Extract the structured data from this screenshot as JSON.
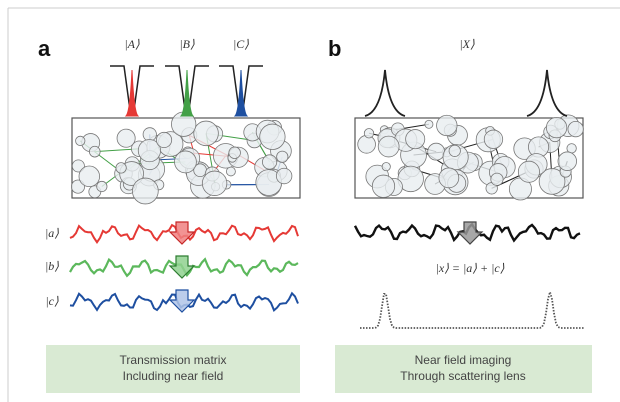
{
  "panel_a": {
    "label": "a",
    "inputs": [
      "|A⟩",
      "|B⟩",
      "|C⟩"
    ],
    "outputs": [
      "|a⟩",
      "|b⟩",
      "|c⟩"
    ],
    "caption": [
      "Transmission matrix",
      "Including near field"
    ]
  },
  "panel_b": {
    "label": "b",
    "input": "|X⟩",
    "equation": "|x⟩ = |a⟩ + |c⟩",
    "caption": [
      "Near field imaging",
      "Through scattering lens"
    ]
  }
}
